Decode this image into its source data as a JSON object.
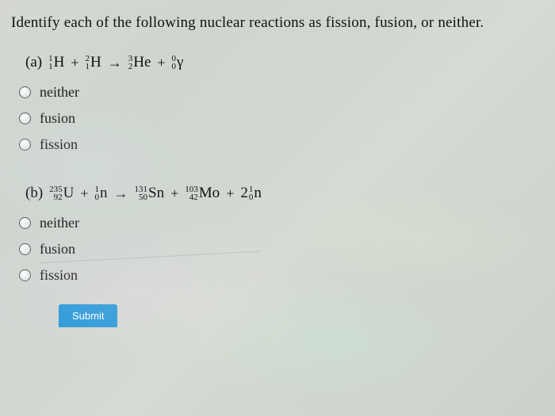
{
  "prompt": "Identify each of the following nuclear reactions as fission, fusion, or neither.",
  "parts": {
    "a": {
      "label": "(a)",
      "terms": [
        {
          "mass": "1",
          "atomic": "1",
          "sym": "H"
        },
        {
          "mass": "2",
          "atomic": "1",
          "sym": "H"
        },
        {
          "mass": "3",
          "atomic": "2",
          "sym": "He"
        },
        {
          "mass": "0",
          "atomic": "0",
          "sym": "γ"
        }
      ],
      "ops": {
        "plus": "+",
        "arrow": "→"
      },
      "options": [
        {
          "label": "neither",
          "name": "opt-a-neither"
        },
        {
          "label": "fusion",
          "name": "opt-a-fusion"
        },
        {
          "label": "fission",
          "name": "opt-a-fission"
        }
      ]
    },
    "b": {
      "label": "(b)",
      "terms": [
        {
          "mass": "235",
          "atomic": "92",
          "sym": "U"
        },
        {
          "mass": "1",
          "atomic": "0",
          "sym": "n"
        },
        {
          "mass": "131",
          "atomic": "50",
          "sym": "Sn"
        },
        {
          "mass": "103",
          "atomic": "42",
          "sym": "Mo"
        },
        {
          "coef": "2",
          "mass": "1",
          "atomic": "0",
          "sym": "n"
        }
      ],
      "ops": {
        "plus": "+",
        "arrow": "→"
      },
      "options": [
        {
          "label": "neither",
          "name": "opt-b-neither"
        },
        {
          "label": "fusion",
          "name": "opt-b-fusion"
        },
        {
          "label": "fission",
          "name": "opt-b-fission"
        }
      ]
    }
  },
  "submit_label": "Submit",
  "colors": {
    "submit_bg": "#2698d6",
    "text": "#111111"
  }
}
